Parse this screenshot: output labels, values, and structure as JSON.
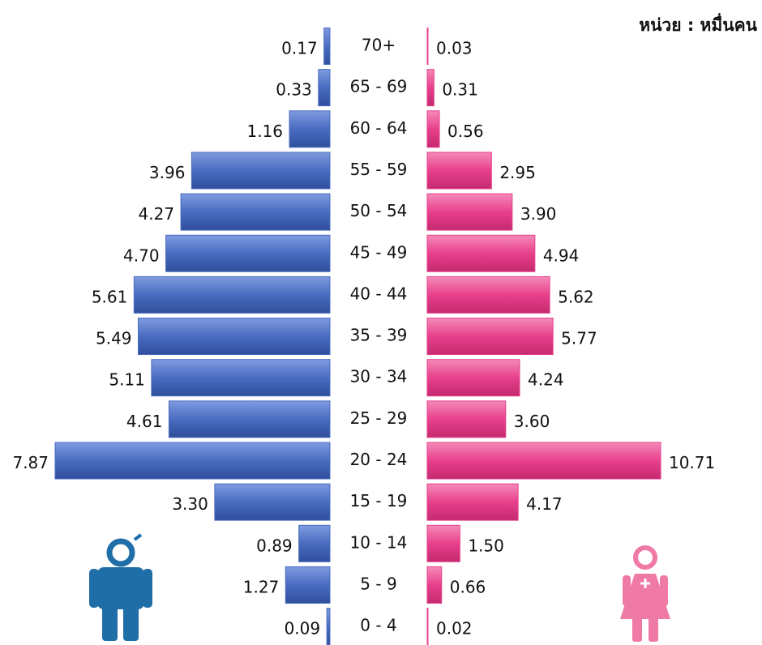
{
  "chart_data": {
    "type": "pyramid",
    "annotation": "หน่วย : หมื่นคน",
    "categories": [
      "70+",
      "65 - 69",
      "60 - 64",
      "55 - 59",
      "50 - 54",
      "45 - 49",
      "40 - 44",
      "35 - 39",
      "30 - 34",
      "25 - 29",
      "20 - 24",
      "15 - 19",
      "10 - 14",
      "5 - 9",
      "0 - 4"
    ],
    "series": [
      {
        "name": "ชาย",
        "color": "#4a6cc0",
        "values": [
          0.17,
          0.33,
          1.16,
          3.96,
          4.27,
          4.7,
          5.61,
          5.49,
          5.11,
          4.61,
          7.87,
          3.3,
          0.89,
          1.27,
          0.09
        ],
        "value_labels": [
          "0.17",
          "0.33",
          "1.16",
          "3.96",
          "4.27",
          "4.70",
          "5.61",
          "5.49",
          "5.11",
          "4.61",
          "7.87",
          "3.30",
          "0.89",
          "1.27",
          "0.09"
        ]
      },
      {
        "name": "หญิง",
        "color": "#e8408c",
        "values": [
          0.03,
          0.31,
          0.56,
          2.95,
          3.9,
          4.94,
          5.62,
          5.77,
          4.24,
          3.6,
          10.71,
          4.17,
          1.5,
          0.66,
          0.02
        ],
        "value_labels": [
          "0.03",
          "0.31",
          "0.56",
          "2.95",
          "3.90",
          "4.94",
          "5.62",
          "5.77",
          "4.24",
          "3.60",
          "10.71",
          "4.17",
          "1.50",
          "0.66",
          "0.02"
        ]
      }
    ]
  }
}
